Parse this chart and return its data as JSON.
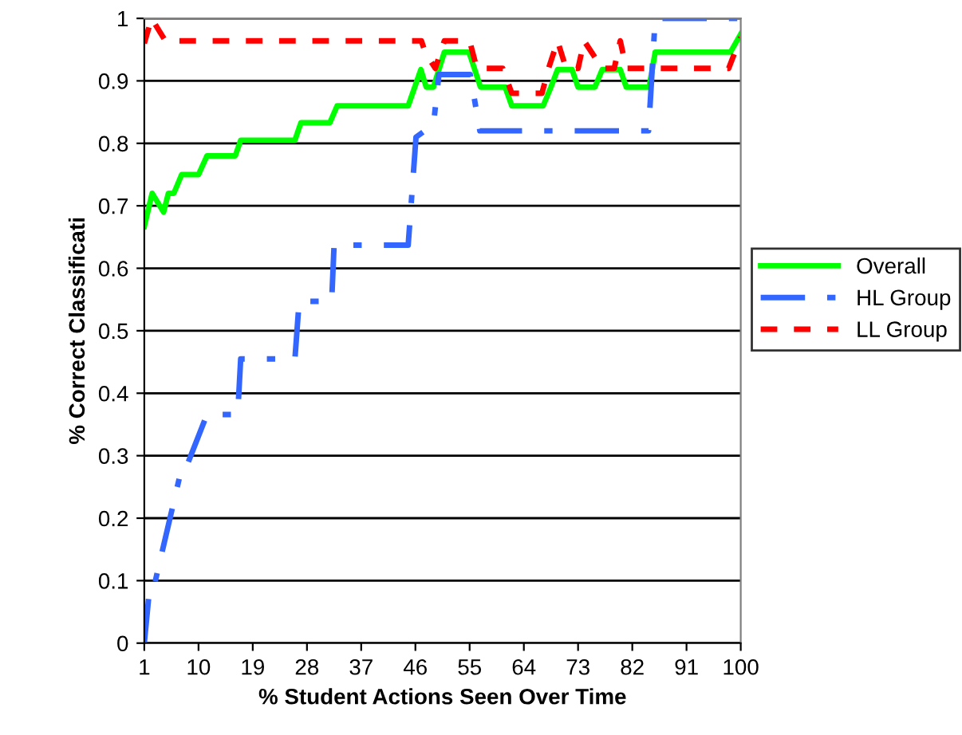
{
  "chart_data": {
    "type": "line",
    "xlabel": "% Student Actions Seen Over Time",
    "ylabel": "% Correct Classificati",
    "xlim": [
      1,
      100
    ],
    "xticks": [
      1,
      10,
      19,
      28,
      37,
      46,
      55,
      64,
      73,
      82,
      91,
      100
    ],
    "ylim": [
      0,
      1
    ],
    "yticks": [
      0,
      0.1,
      0.2,
      0.3,
      0.4,
      0.5,
      0.6,
      0.7,
      0.8,
      0.9,
      1
    ],
    "grid": "y",
    "legend": "right",
    "series": [
      {
        "name": "Overall",
        "color": "#00ff00",
        "line_style": "solid",
        "x": [
          1,
          2.3,
          4.2,
          5,
          5.9,
          7.2,
          10,
          11.4,
          16.1,
          17,
          26,
          27,
          31.8,
          33,
          44.8,
          46.9,
          47.8,
          49,
          50.8,
          54.9,
          56.8,
          60.9,
          62,
          67.2,
          68.5,
          69.6,
          72,
          73,
          75.8,
          77,
          80,
          81,
          84.8,
          85.8,
          98.3,
          100
        ],
        "values": [
          0.667,
          0.72,
          0.69,
          0.72,
          0.72,
          0.75,
          0.75,
          0.78,
          0.78,
          0.805,
          0.805,
          0.833,
          0.833,
          0.86,
          0.86,
          0.918,
          0.89,
          0.89,
          0.946,
          0.946,
          0.89,
          0.89,
          0.86,
          0.86,
          0.89,
          0.918,
          0.918,
          0.89,
          0.89,
          0.918,
          0.918,
          0.89,
          0.89,
          0.946,
          0.946,
          0.975
        ]
      },
      {
        "name": "HL Group",
        "color": "#3366ff",
        "line_style": "dashdot",
        "x": [
          1,
          1.9,
          2.6,
          7.2,
          7.9,
          11.4,
          16.5,
          17,
          26,
          26.7,
          32.1,
          32.5,
          44.8,
          46.1,
          49,
          49.9,
          55.1,
          56.7,
          84.7,
          85.8,
          100
        ],
        "values": [
          0,
          0.09,
          0.09,
          0.28,
          0.28,
          0.366,
          0.366,
          0.455,
          0.455,
          0.547,
          0.547,
          0.637,
          0.637,
          0.81,
          0.83,
          0.91,
          0.91,
          0.82,
          0.82,
          1.0,
          1.0
        ]
      },
      {
        "name": "LL Group",
        "color": "#ff0000",
        "line_style": "dashed",
        "x": [
          1,
          2.2,
          4.5,
          47,
          47.6,
          49.3,
          50.8,
          55,
          56.2,
          60.5,
          62,
          67,
          68.1,
          69.6,
          71,
          73,
          74,
          77,
          79,
          80,
          81,
          98,
          100
        ],
        "values": [
          0.96,
          1.0,
          0.964,
          0.964,
          0.946,
          0.92,
          0.964,
          0.964,
          0.92,
          0.92,
          0.88,
          0.88,
          0.92,
          0.964,
          0.92,
          0.92,
          0.964,
          0.92,
          0.92,
          0.964,
          0.92,
          0.92,
          0.97
        ]
      }
    ]
  }
}
